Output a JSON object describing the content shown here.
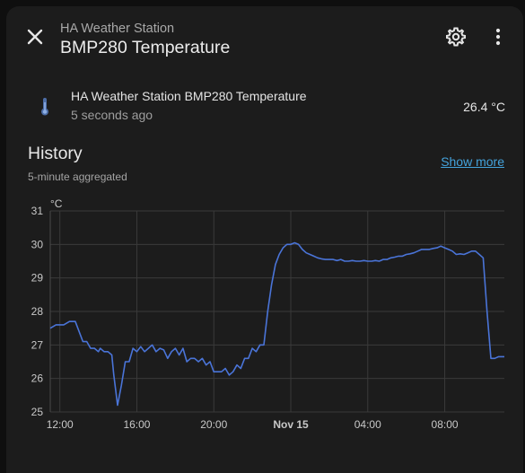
{
  "header": {
    "subtitle": "HA Weather Station",
    "title": "BMP280 Temperature",
    "close_icon": "close-icon",
    "settings_icon": "gear-icon",
    "more_icon": "dots-vertical-icon"
  },
  "entity": {
    "name": "HA Weather Station BMP280 Temperature",
    "last_changed": "5 seconds ago",
    "state": "26.4 °C",
    "icon": "thermometer-icon"
  },
  "history": {
    "title": "History",
    "subtitle": "5-minute aggregated",
    "show_more": "Show more"
  },
  "colors": {
    "accent": "#44a3dc",
    "line": "#4a74d8",
    "background": "#1c1c1c"
  },
  "chart_data": {
    "type": "line",
    "title": "",
    "ylabel": "°C",
    "xlabel": "",
    "ylim": [
      25,
      31
    ],
    "yticks": [
      "25",
      "26",
      "27",
      "28",
      "29",
      "30",
      "31"
    ],
    "xticks": [
      {
        "label": "12:00",
        "h": 12,
        "bold": false
      },
      {
        "label": "16:00",
        "h": 16,
        "bold": false
      },
      {
        "label": "20:00",
        "h": 20,
        "bold": false
      },
      {
        "label": "Nov 15",
        "h": 24,
        "bold": true
      },
      {
        "label": "04:00",
        "h": 28,
        "bold": false
      },
      {
        "label": "08:00",
        "h": 32,
        "bold": false
      }
    ],
    "x_hours_start": 11.5,
    "x_hours_end": 35.1,
    "grid": true,
    "series": [
      {
        "name": "",
        "x": [
          11.5,
          11.8,
          12.2,
          12.5,
          12.8,
          13.2,
          13.4,
          13.6,
          13.8,
          14.0,
          14.1,
          14.3,
          14.5,
          14.7,
          14.8,
          15.0,
          15.2,
          15.4,
          15.6,
          15.8,
          16.0,
          16.2,
          16.4,
          16.6,
          16.8,
          17.0,
          17.2,
          17.4,
          17.6,
          17.8,
          18.0,
          18.2,
          18.4,
          18.6,
          18.8,
          19.0,
          19.2,
          19.4,
          19.6,
          19.8,
          20.0,
          20.2,
          20.4,
          20.6,
          20.8,
          21.0,
          21.2,
          21.4,
          21.6,
          21.8,
          22.0,
          22.2,
          22.4,
          22.6,
          22.8,
          23.0,
          23.2,
          23.4,
          23.6,
          23.8,
          24.0,
          24.2,
          24.4,
          24.6,
          24.8,
          25.0,
          25.2,
          25.4,
          25.6,
          25.8,
          26.0,
          26.2,
          26.4,
          26.6,
          26.8,
          27.0,
          27.2,
          27.4,
          27.6,
          27.8,
          28.0,
          28.2,
          28.4,
          28.6,
          28.8,
          29.0,
          29.2,
          29.4,
          29.6,
          29.8,
          30.0,
          30.2,
          30.4,
          30.6,
          30.8,
          31.0,
          31.2,
          31.4,
          31.6,
          31.8,
          32.0,
          32.2,
          32.4,
          32.6,
          32.8,
          33.0,
          33.2,
          33.4,
          33.6,
          33.8,
          34.0,
          34.2,
          34.4,
          34.6,
          34.8,
          35.1
        ],
        "y": [
          27.5,
          27.6,
          27.6,
          27.7,
          27.7,
          27.1,
          27.1,
          26.9,
          26.9,
          26.8,
          26.9,
          26.8,
          26.8,
          26.7,
          26.1,
          25.2,
          25.8,
          26.5,
          26.5,
          26.9,
          26.8,
          26.95,
          26.8,
          26.9,
          27.0,
          26.8,
          26.9,
          26.85,
          26.6,
          26.8,
          26.9,
          26.7,
          26.9,
          26.5,
          26.6,
          26.6,
          26.5,
          26.6,
          26.4,
          26.5,
          26.2,
          26.2,
          26.2,
          26.3,
          26.1,
          26.2,
          26.4,
          26.3,
          26.6,
          26.6,
          26.9,
          26.8,
          27.0,
          27.0,
          28.0,
          28.8,
          29.4,
          29.7,
          29.9,
          30.0,
          30.0,
          30.05,
          30.0,
          29.85,
          29.75,
          29.7,
          29.65,
          29.6,
          29.57,
          29.55,
          29.55,
          29.55,
          29.52,
          29.55,
          29.5,
          29.5,
          29.52,
          29.5,
          29.5,
          29.52,
          29.5,
          29.5,
          29.52,
          29.5,
          29.55,
          29.55,
          29.6,
          29.62,
          29.65,
          29.65,
          29.7,
          29.72,
          29.75,
          29.8,
          29.85,
          29.85,
          29.85,
          29.88,
          29.9,
          29.95,
          29.9,
          29.85,
          29.8,
          29.7,
          29.72,
          29.7,
          29.75,
          29.8,
          29.8,
          29.7,
          29.6,
          28.0,
          26.6,
          26.6,
          26.65,
          26.65
        ]
      }
    ]
  }
}
